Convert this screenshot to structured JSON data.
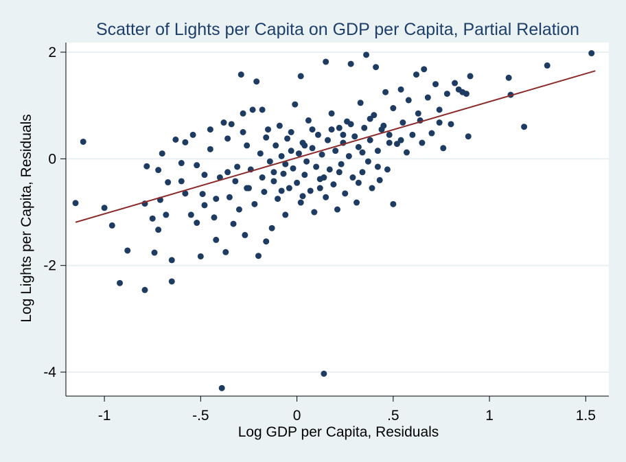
{
  "chart_data": {
    "type": "scatter",
    "title": "Scatter of Lights per Capita on GDP per Capita, Partial Relation",
    "xlabel": "Log GDP per Capita, Residuals",
    "ylabel": "Log Lights per Capita, Residuals",
    "xlim": [
      -1.2,
      1.62
    ],
    "ylim": [
      -4.45,
      2.18
    ],
    "x_ticks": [
      -1,
      -0.5,
      0,
      0.5,
      1,
      1.5
    ],
    "x_tick_labels": [
      "-1",
      "-.5",
      "0",
      ".5",
      "1",
      "1.5"
    ],
    "y_ticks": [
      2,
      0,
      -2,
      -4
    ],
    "y_tick_labels": [
      "2",
      "0",
      "-2",
      "-4"
    ],
    "grid": "horizontal",
    "legend": "none",
    "colors": {
      "background": "#eaf2f3",
      "plot_background": "#ffffff",
      "gridline": "#e8f0f3",
      "points": "#1e3b62",
      "fit_line": "#8b2c2c",
      "title": "#1f3f6b"
    },
    "series": [
      {
        "kind": "points",
        "points": [
          [
            -1.15,
            -0.83
          ],
          [
            -1.11,
            0.32
          ],
          [
            -1.0,
            -0.92
          ],
          [
            -0.96,
            -1.25
          ],
          [
            -0.92,
            -2.33
          ],
          [
            -0.88,
            -1.72
          ],
          [
            -0.79,
            -2.46
          ],
          [
            -0.79,
            -0.84
          ],
          [
            -0.78,
            -0.14
          ],
          [
            -0.75,
            -1.12
          ],
          [
            -0.74,
            -1.76
          ],
          [
            -0.72,
            -0.21
          ],
          [
            -0.72,
            -1.33
          ],
          [
            -0.71,
            -0.77
          ],
          [
            -0.7,
            0.1
          ],
          [
            -0.67,
            -0.44
          ],
          [
            -0.65,
            -1.9
          ],
          [
            -0.65,
            -2.3
          ],
          [
            -0.63,
            0.36
          ],
          [
            -0.6,
            -0.08
          ],
          [
            -0.58,
            0.31
          ],
          [
            -0.55,
            -1.05
          ],
          [
            -0.54,
            0.45
          ],
          [
            -0.52,
            -1.2
          ],
          [
            -0.5,
            -1.83
          ],
          [
            -0.49,
            -0.66
          ],
          [
            -0.48,
            -0.87
          ],
          [
            -0.45,
            0.18
          ],
          [
            -0.43,
            -1.1
          ],
          [
            -0.42,
            -1.52
          ],
          [
            -0.4,
            -0.35
          ],
          [
            -0.39,
            -4.3
          ],
          [
            -0.37,
            -1.75
          ],
          [
            -0.36,
            0.38
          ],
          [
            -0.35,
            -0.72
          ],
          [
            -0.34,
            0.65
          ],
          [
            -0.33,
            -1.22
          ],
          [
            -0.31,
            -0.15
          ],
          [
            -0.3,
            -0.95
          ],
          [
            -0.29,
            1.58
          ],
          [
            -0.28,
            0.5
          ],
          [
            -0.27,
            -1.43
          ],
          [
            -0.26,
            0.25
          ],
          [
            -0.25,
            -0.55
          ],
          [
            -0.24,
            -0.2
          ],
          [
            -0.23,
            0.92
          ],
          [
            -0.22,
            -0.85
          ],
          [
            -0.21,
            1.45
          ],
          [
            -0.2,
            -1.82
          ],
          [
            -0.19,
            0.1
          ],
          [
            -0.18,
            -0.35
          ],
          [
            -0.17,
            -0.62
          ],
          [
            -0.16,
            -1.55
          ],
          [
            -0.15,
            0.55
          ],
          [
            -0.14,
            -0.05
          ],
          [
            -0.13,
            -1.3
          ],
          [
            -0.12,
            -0.42
          ],
          [
            -0.11,
            0.25
          ],
          [
            -0.1,
            -0.75
          ],
          [
            -0.09,
            0.62
          ],
          [
            -0.08,
            0.05
          ],
          [
            -0.07,
            -0.28
          ],
          [
            -0.06,
            -1.05
          ],
          [
            -0.05,
            0.38
          ],
          [
            -0.04,
            -0.55
          ],
          [
            -0.03,
            0.15
          ],
          [
            -0.02,
            -0.18
          ],
          [
            -0.01,
            1.02
          ],
          [
            0.0,
            -0.45
          ],
          [
            0.01,
            0.1
          ],
          [
            0.02,
            -0.82
          ],
          [
            0.02,
            1.55
          ],
          [
            0.03,
            0.3
          ],
          [
            0.04,
            -0.3
          ],
          [
            0.05,
            -0.05
          ],
          [
            0.06,
            0.72
          ],
          [
            0.07,
            -0.6
          ],
          [
            0.08,
            0.2
          ],
          [
            0.09,
            -1.0
          ],
          [
            0.1,
            -0.15
          ],
          [
            0.11,
            0.45
          ],
          [
            0.12,
            -0.38
          ],
          [
            0.13,
            0.08
          ],
          [
            0.14,
            -4.03
          ],
          [
            0.15,
            1.82
          ],
          [
            0.15,
            -0.72
          ],
          [
            0.16,
            0.35
          ],
          [
            0.17,
            -0.2
          ],
          [
            0.18,
            0.85
          ],
          [
            0.19,
            -0.48
          ],
          [
            0.2,
            0.15
          ],
          [
            0.21,
            -0.95
          ],
          [
            0.22,
            0.58
          ],
          [
            0.23,
            -0.1
          ],
          [
            0.24,
            0.3
          ],
          [
            0.25,
            -0.65
          ],
          [
            0.26,
            0.7
          ],
          [
            0.27,
            0.05
          ],
          [
            0.28,
            1.78
          ],
          [
            0.29,
            -0.35
          ],
          [
            0.3,
            0.42
          ],
          [
            0.31,
            -0.82
          ],
          [
            0.32,
            0.22
          ],
          [
            0.33,
            1.05
          ],
          [
            0.34,
            -0.25
          ],
          [
            0.35,
            0.58
          ],
          [
            0.36,
            1.95
          ],
          [
            0.37,
            -0.05
          ],
          [
            0.38,
            0.35
          ],
          [
            0.39,
            -0.55
          ],
          [
            0.4,
            0.82
          ],
          [
            0.41,
            1.72
          ],
          [
            0.42,
            0.15
          ],
          [
            0.43,
            -0.4
          ],
          [
            0.45,
            0.62
          ],
          [
            0.46,
            1.25
          ],
          [
            0.47,
            -0.2
          ],
          [
            0.48,
            0.45
          ],
          [
            0.5,
            0.95
          ],
          [
            0.5,
            -0.85
          ],
          [
            0.52,
            0.28
          ],
          [
            0.54,
            1.3
          ],
          [
            0.55,
            0.68
          ],
          [
            0.57,
            0.12
          ],
          [
            0.58,
            1.1
          ],
          [
            0.6,
            0.45
          ],
          [
            0.62,
            1.58
          ],
          [
            0.63,
            0.85
          ],
          [
            0.65,
            0.3
          ],
          [
            0.66,
            1.68
          ],
          [
            0.68,
            1.15
          ],
          [
            0.7,
            0.48
          ],
          [
            0.72,
            1.4
          ],
          [
            0.74,
            0.92
          ],
          [
            0.76,
            0.2
          ],
          [
            0.78,
            1.22
          ],
          [
            0.8,
            0.65
          ],
          [
            0.82,
            1.42
          ],
          [
            0.84,
            1.3
          ],
          [
            0.86,
            1.25
          ],
          [
            0.88,
            1.22
          ],
          [
            0.89,
            0.42
          ],
          [
            0.9,
            1.55
          ],
          [
            1.1,
            1.52
          ],
          [
            1.11,
            1.2
          ],
          [
            1.18,
            0.6
          ],
          [
            1.3,
            1.75
          ],
          [
            1.53,
            1.98
          ],
          [
            -0.45,
            0.55
          ],
          [
            -0.38,
            0.68
          ],
          [
            -0.32,
            -0.42
          ],
          [
            -0.28,
            0.85
          ],
          [
            -0.18,
            0.92
          ],
          [
            -0.12,
            -0.25
          ],
          [
            -0.08,
            -0.6
          ],
          [
            -0.03,
            0.5
          ],
          [
            0.03,
            -0.7
          ],
          [
            0.08,
            0.55
          ],
          [
            0.12,
            -0.55
          ],
          [
            0.18,
            0.55
          ],
          [
            0.22,
            -0.25
          ],
          [
            0.28,
            0.65
          ],
          [
            0.32,
            -0.45
          ],
          [
            0.38,
            0.75
          ],
          [
            0.42,
            -0.15
          ],
          [
            0.48,
            0.3
          ],
          [
            -0.6,
            -0.42
          ],
          [
            -0.52,
            -0.12
          ],
          [
            -0.42,
            -0.75
          ],
          [
            -0.36,
            -0.25
          ],
          [
            -0.26,
            -0.55
          ],
          [
            -0.16,
            0.4
          ],
          [
            -0.06,
            -0.1
          ],
          [
            0.04,
            0.25
          ],
          [
            0.14,
            -0.35
          ],
          [
            0.24,
            0.45
          ],
          [
            0.34,
            0.12
          ],
          [
            0.44,
            0.55
          ],
          [
            0.54,
            0.35
          ],
          [
            0.64,
            0.72
          ],
          [
            0.74,
            0.68
          ],
          [
            -0.68,
            -1.05
          ],
          [
            -0.58,
            -0.65
          ],
          [
            -0.48,
            -0.3
          ]
        ]
      },
      {
        "kind": "fit",
        "x": [
          -1.15,
          1.55
        ],
        "y": [
          -1.19,
          1.65
        ]
      }
    ]
  }
}
